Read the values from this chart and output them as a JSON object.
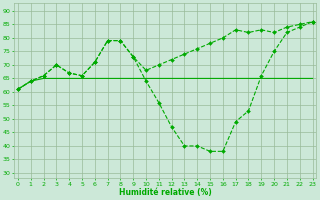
{
  "x": [
    0,
    1,
    2,
    3,
    4,
    5,
    6,
    7,
    8,
    9,
    10,
    11,
    12,
    13,
    14,
    15,
    16,
    17,
    18,
    19,
    20,
    21,
    22,
    23
  ],
  "line_upper": [
    61,
    64,
    66,
    70,
    67,
    66,
    71,
    79,
    79,
    73,
    68,
    70,
    72,
    74,
    76,
    78,
    80,
    83,
    82,
    83,
    82,
    84,
    85,
    86
  ],
  "line_lower": [
    61,
    64,
    66,
    70,
    67,
    66,
    71,
    79,
    79,
    73,
    64,
    56,
    47,
    40,
    40,
    38,
    38,
    49,
    53,
    66,
    75,
    82,
    84,
    86
  ],
  "line_flat": [
    61,
    64,
    65,
    65,
    65,
    65,
    65,
    65,
    65,
    65,
    65,
    65,
    65,
    65,
    65,
    65,
    65,
    65,
    65,
    65,
    65,
    65,
    65,
    65
  ],
  "bg_color": "#cce8d8",
  "grid_color": "#99bb99",
  "line_color": "#00aa00",
  "xlabel": "Humidité relative (%)",
  "xlabel_color": "#00aa00",
  "yticks": [
    30,
    35,
    40,
    45,
    50,
    55,
    60,
    65,
    70,
    75,
    80,
    85,
    90
  ],
  "xticks": [
    0,
    1,
    2,
    3,
    4,
    5,
    6,
    7,
    8,
    9,
    10,
    11,
    12,
    13,
    14,
    15,
    16,
    17,
    18,
    19,
    20,
    21,
    22,
    23
  ],
  "ylim": [
    28,
    93
  ],
  "xlim": [
    -0.3,
    23.3
  ]
}
